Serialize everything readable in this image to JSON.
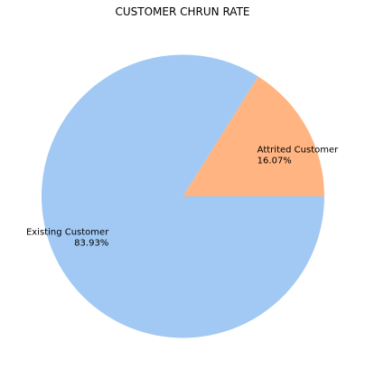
{
  "chart_data": {
    "type": "pie",
    "title": "CUSTOMER CHRUN RATE",
    "slices": [
      {
        "label": "Attrited Customer",
        "value": 16.07,
        "pct_label": "16.07%",
        "color": "#ffb482"
      },
      {
        "label": "Existing Customer",
        "value": 83.93,
        "pct_label": "83.93%",
        "color": "#a1c9f4"
      }
    ],
    "start_angle": "3 o'clock, counter-clockwise",
    "legend": "none"
  }
}
